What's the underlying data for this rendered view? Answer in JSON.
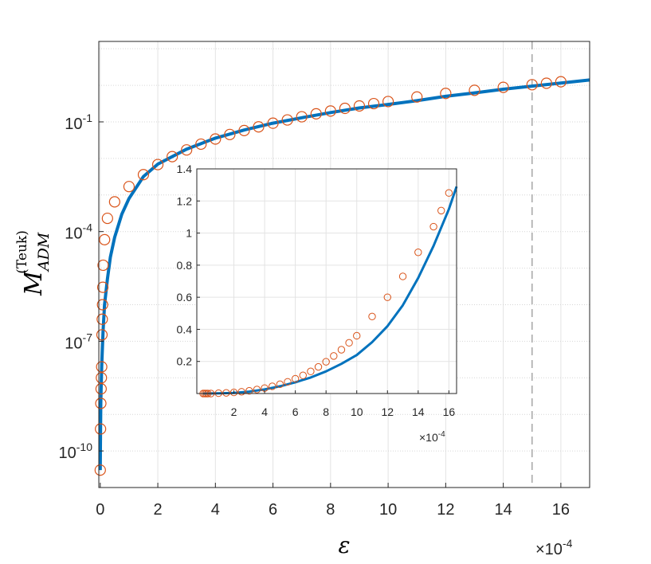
{
  "chart_data": [
    {
      "type": "line",
      "x_label": "ε",
      "y_label": "M",
      "y_label_sub": "ADM",
      "y_label_sup": "(Teuk)",
      "x_multiplier": "×10",
      "x_multiplier_exp": "-4",
      "x_scale": "linear",
      "y_scale": "log",
      "xlim": [
        -0.05,
        17
      ],
      "ylim_log10": [
        -11,
        1.2
      ],
      "x_ticks": [
        "0",
        "2",
        "4",
        "6",
        "8",
        "10",
        "12",
        "14",
        "16"
      ],
      "y_ticks": [
        {
          "base": "10",
          "exp": "-10"
        },
        {
          "base": "10",
          "exp": "-7"
        },
        {
          "base": "10",
          "exp": "-4"
        },
        {
          "base": "10",
          "exp": "-1"
        }
      ],
      "grid": true,
      "vertical_marker_x": 15,
      "series": [
        {
          "style": "solid-line",
          "color": "#0072BD",
          "x": [
            0,
            0.005,
            0.01,
            0.02,
            0.03,
            0.05,
            0.1,
            0.15,
            0.25,
            0.35,
            0.5,
            0.75,
            1,
            1.5,
            2,
            3,
            4,
            5,
            6,
            7,
            8,
            9,
            10,
            11,
            12,
            13,
            14,
            15,
            16,
            17
          ],
          "y": [
            3e-11,
            1.2e-10,
            4e-10,
            2e-09,
            5e-09,
            2e-08,
            2e-07,
            1e-06,
            5e-06,
            2e-05,
            7e-05,
            0.0003,
            0.0008,
            0.0032,
            0.007,
            0.018,
            0.036,
            0.06,
            0.092,
            0.13,
            0.18,
            0.24,
            0.3,
            0.38,
            0.5,
            0.62,
            0.78,
            0.95,
            1.15,
            1.4
          ]
        },
        {
          "style": "open-circle",
          "color": "#D95319",
          "x": [
            0,
            0.01,
            0.02,
            0.03,
            0.04,
            0.05,
            0.06,
            0.07,
            0.08,
            0.09,
            0.1,
            0.15,
            0.25,
            0.5,
            1,
            1.5,
            2,
            2.5,
            3,
            3.5,
            4,
            4.5,
            5,
            5.5,
            6,
            6.5,
            7,
            7.5,
            8,
            8.5,
            9,
            9.5,
            10,
            11,
            12,
            13,
            14,
            15,
            15.5,
            16
          ],
          "y": [
            3e-11,
            4e-10,
            2e-09,
            5e-09,
            1e-08,
            2e-08,
            1.5e-07,
            4e-07,
            1e-06,
            3e-06,
            1.2e-05,
            6e-05,
            0.00023,
            0.00065,
            0.0017,
            0.0036,
            0.0068,
            0.0112,
            0.0171,
            0.0246,
            0.034,
            0.0452,
            0.058,
            0.073,
            0.092,
            0.113,
            0.138,
            0.166,
            0.198,
            0.234,
            0.273,
            0.316,
            0.36,
            0.48,
            0.6,
            0.73,
            0.88,
            1.04,
            1.14,
            1.25
          ]
        }
      ]
    },
    {
      "type": "line",
      "role": "inset",
      "x_multiplier": "×10",
      "x_multiplier_exp": "-4",
      "x_scale": "linear",
      "y_scale": "linear",
      "xlim": [
        0,
        16.5
      ],
      "ylim": [
        0,
        1.4
      ],
      "x_ticks": [
        "2",
        "4",
        "6",
        "8",
        "10",
        "12",
        "14",
        "16"
      ],
      "y_ticks": [
        "0.2",
        "0.4",
        "0.6",
        "0.8",
        "1",
        "1.2",
        "1.4"
      ],
      "grid": true,
      "series": [
        {
          "style": "solid-line",
          "color": "#0072BD",
          "x": [
            0,
            0.5,
            1,
            2,
            3,
            4,
            5,
            6,
            7,
            8,
            9,
            10,
            11,
            12,
            13,
            14,
            15,
            16,
            16.5
          ],
          "y": [
            0,
            0.0003,
            0.001,
            0.004,
            0.012,
            0.026,
            0.045,
            0.07,
            0.1,
            0.138,
            0.185,
            0.24,
            0.32,
            0.42,
            0.55,
            0.72,
            0.92,
            1.15,
            1.29
          ]
        },
        {
          "style": "open-circle",
          "color": "#D95319",
          "x": [
            0,
            0.1,
            0.2,
            0.3,
            0.5,
            1,
            1.5,
            2,
            2.5,
            3,
            3.5,
            4,
            4.5,
            5,
            5.5,
            6,
            6.5,
            7,
            7.5,
            8,
            8.5,
            9,
            9.5,
            10,
            11,
            12,
            13,
            14,
            15,
            15.5,
            16
          ],
          "y": [
            0,
            0,
            0,
            0,
            0,
            0.002,
            0.004,
            0.007,
            0.011,
            0.017,
            0.025,
            0.034,
            0.045,
            0.058,
            0.073,
            0.092,
            0.113,
            0.138,
            0.166,
            0.198,
            0.234,
            0.273,
            0.316,
            0.36,
            0.48,
            0.6,
            0.73,
            0.88,
            1.04,
            1.14,
            1.25
          ]
        }
      ]
    }
  ]
}
